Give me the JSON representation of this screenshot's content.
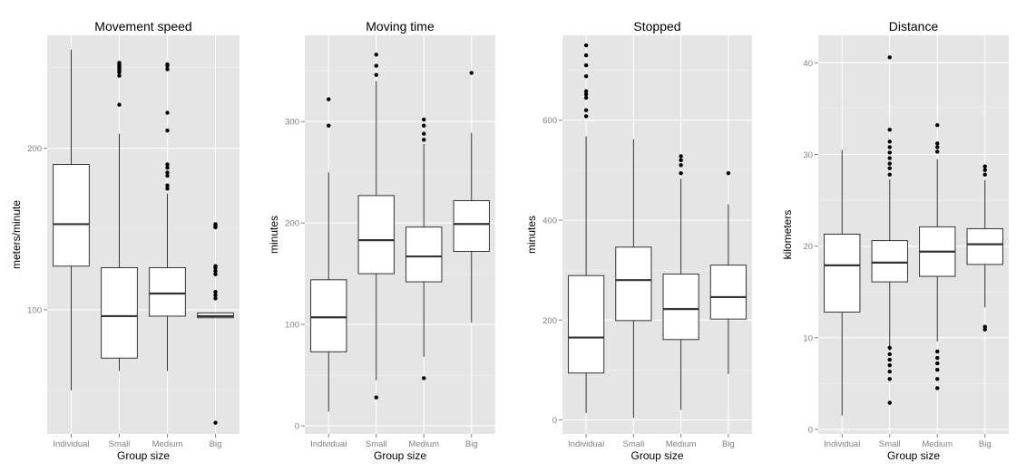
{
  "figure": {
    "colors": {
      "panel_background": "#e5e5e5",
      "grid": "#ffffff",
      "box_fill": "#ffffff",
      "box_stroke": "#333333",
      "median": "#333333",
      "outlier": "#000000",
      "tick_text": "#7f7f7f"
    }
  },
  "chart_data": [
    {
      "type": "boxplot",
      "title": "Movement speed",
      "xlabel": "Group size",
      "ylabel": "meters/minute",
      "categories": [
        "Individual",
        "Small",
        "Medium",
        "Big"
      ],
      "ylim": [
        23,
        270
      ],
      "yticks": [
        100,
        200
      ],
      "boxes": [
        {
          "category": "Individual",
          "whisker_low": 50,
          "q1": 127,
          "median": 153,
          "q3": 190,
          "whisker_high": 261,
          "outliers": []
        },
        {
          "category": "Small",
          "whisker_low": 62,
          "q1": 70,
          "median": 96,
          "q3": 126,
          "whisker_high": 209,
          "outliers": [
            227,
            245,
            247,
            248,
            249,
            250,
            251,
            252,
            253
          ]
        },
        {
          "category": "Medium",
          "whisker_low": 62,
          "q1": 96,
          "median": 110,
          "q3": 126,
          "whisker_high": 172,
          "outliers": [
            175,
            177,
            183,
            185,
            188,
            190,
            211,
            222,
            249,
            251,
            252
          ]
        },
        {
          "category": "Big",
          "whisker_low": 95,
          "q1": 95,
          "median": 96,
          "q3": 98,
          "whisker_high": 98,
          "outliers": [
            30,
            107,
            109,
            111,
            122,
            124,
            126,
            127,
            151,
            152,
            153
          ]
        }
      ]
    },
    {
      "type": "boxplot",
      "title": "Moving time",
      "xlabel": "Group size",
      "ylabel": "minutes",
      "categories": [
        "Individual",
        "Small",
        "Medium",
        "Big"
      ],
      "ylim": [
        -8,
        385
      ],
      "yticks": [
        0,
        100,
        200,
        300
      ],
      "boxes": [
        {
          "category": "Individual",
          "whisker_low": 14,
          "q1": 73,
          "median": 107,
          "q3": 144,
          "whisker_high": 250,
          "outliers": [
            296,
            322
          ]
        },
        {
          "category": "Small",
          "whisker_low": 45,
          "q1": 150,
          "median": 183,
          "q3": 227,
          "whisker_high": 340,
          "outliers": [
            28,
            346,
            355,
            366
          ]
        },
        {
          "category": "Medium",
          "whisker_low": 68,
          "q1": 142,
          "median": 167,
          "q3": 196,
          "whisker_high": 278,
          "outliers": [
            47,
            282,
            288,
            296,
            302
          ]
        },
        {
          "category": "Big",
          "whisker_low": 102,
          "q1": 172,
          "median": 199,
          "q3": 222,
          "whisker_high": 289,
          "outliers": [
            348
          ]
        }
      ]
    },
    {
      "type": "boxplot",
      "title": "Stopped",
      "xlabel": "Group size",
      "ylabel": "minutes",
      "categories": [
        "Individual",
        "Small",
        "Medium",
        "Big"
      ],
      "ylim": [
        -28,
        770
      ],
      "yticks": [
        0,
        200,
        400,
        600
      ],
      "boxes": [
        {
          "category": "Individual",
          "whisker_low": 14,
          "q1": 94,
          "median": 165,
          "q3": 289,
          "whisker_high": 568,
          "outliers": [
            608,
            620,
            645,
            652,
            658,
            688,
            710,
            730,
            750
          ]
        },
        {
          "category": "Small",
          "whisker_low": 4,
          "q1": 199,
          "median": 280,
          "q3": 346,
          "whisker_high": 562,
          "outliers": []
        },
        {
          "category": "Medium",
          "whisker_low": 20,
          "q1": 161,
          "median": 222,
          "q3": 292,
          "whisker_high": 483,
          "outliers": [
            494,
            510,
            520,
            528
          ]
        },
        {
          "category": "Big",
          "whisker_low": 92,
          "q1": 202,
          "median": 246,
          "q3": 310,
          "whisker_high": 432,
          "outliers": [
            494
          ]
        }
      ]
    },
    {
      "type": "boxplot",
      "title": "Distance",
      "xlabel": "Group size",
      "ylabel": "kilometers",
      "categories": [
        "Individual",
        "Small",
        "Medium",
        "Big"
      ],
      "ylim": [
        -0.5,
        43
      ],
      "yticks": [
        0,
        10,
        20,
        30,
        40
      ],
      "boxes": [
        {
          "category": "Individual",
          "whisker_low": 1.5,
          "q1": 12.8,
          "median": 17.9,
          "q3": 21.3,
          "whisker_high": 30.5,
          "outliers": []
        },
        {
          "category": "Small",
          "whisker_low": 8.6,
          "q1": 16.1,
          "median": 18.2,
          "q3": 20.6,
          "whisker_high": 27.3,
          "outliers": [
            2.9,
            5.5,
            6.3,
            7.0,
            7.6,
            8.2,
            8.9,
            27.8,
            28.5,
            29.0,
            29.6,
            30.2,
            30.8,
            31.4,
            32.7,
            40.6
          ]
        },
        {
          "category": "Medium",
          "whisker_low": 9.6,
          "q1": 16.7,
          "median": 19.4,
          "q3": 22.1,
          "whisker_high": 29.5,
          "outliers": [
            4.5,
            5.5,
            6.5,
            7.2,
            7.8,
            8.5,
            30.3,
            30.8,
            31.2,
            33.2
          ]
        },
        {
          "category": "Big",
          "whisker_low": 13.3,
          "q1": 18.0,
          "median": 20.2,
          "q3": 21.9,
          "whisker_high": 27.2,
          "outliers": [
            10.9,
            11.2,
            27.8,
            28.3,
            28.7
          ]
        }
      ]
    }
  ]
}
